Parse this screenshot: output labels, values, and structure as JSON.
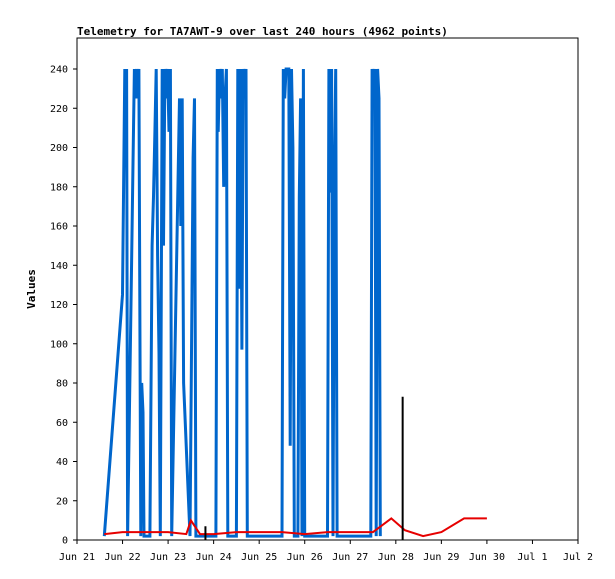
{
  "chart_data": {
    "type": "line",
    "title": "Telemetry for TA7AWT-9 over last 240 hours (4962 points)",
    "ylabel": "Values",
    "xlabel": "",
    "ylim": [
      0,
      250
    ],
    "yticks": [
      0,
      20,
      40,
      60,
      80,
      100,
      120,
      140,
      160,
      180,
      200,
      220,
      240
    ],
    "xlim": [
      0,
      11
    ],
    "xticks": [
      "Jun 21",
      "Jun 22",
      "Jun 23",
      "Jun 24",
      "Jun 25",
      "Jun 26",
      "Jun 27",
      "Jun 28",
      "Jun 29",
      "Jun 30",
      "Jul 1",
      "Jul 2"
    ],
    "grid": false,
    "legend": "none",
    "series": [
      {
        "color": "#0066cc",
        "style": "line",
        "points": [
          [
            0.6,
            2
          ],
          [
            1.0,
            125
          ],
          [
            1.05,
            240
          ],
          [
            1.07,
            208
          ],
          [
            1.09,
            240
          ],
          [
            1.11,
            2
          ],
          [
            1.2,
            145
          ],
          [
            1.23,
            192
          ],
          [
            1.26,
            240
          ],
          [
            1.28,
            225
          ],
          [
            1.31,
            240
          ],
          [
            1.33,
            225
          ],
          [
            1.36,
            240
          ],
          [
            1.38,
            110
          ],
          [
            1.4,
            2
          ],
          [
            1.42,
            80
          ],
          [
            1.45,
            65
          ],
          [
            1.47,
            2
          ],
          [
            1.6,
            2
          ],
          [
            1.65,
            150
          ],
          [
            1.68,
            175
          ],
          [
            1.71,
            208
          ],
          [
            1.74,
            240
          ],
          [
            1.77,
            145
          ],
          [
            1.8,
            95
          ],
          [
            1.83,
            2
          ],
          [
            1.87,
            240
          ],
          [
            1.9,
            150
          ],
          [
            1.93,
            240
          ],
          [
            1.96,
            225
          ],
          [
            1.99,
            240
          ],
          [
            2.02,
            208
          ],
          [
            2.05,
            240
          ],
          [
            2.08,
            2
          ],
          [
            2.25,
            225
          ],
          [
            2.28,
            160
          ],
          [
            2.31,
            225
          ],
          [
            2.34,
            80
          ],
          [
            2.48,
            2
          ],
          [
            2.55,
            195
          ],
          [
            2.58,
            225
          ],
          [
            2.61,
            2
          ],
          [
            3.05,
            2
          ],
          [
            3.08,
            240
          ],
          [
            3.1,
            208
          ],
          [
            3.13,
            240
          ],
          [
            3.16,
            225
          ],
          [
            3.19,
            240
          ],
          [
            3.22,
            180
          ],
          [
            3.25,
            225
          ],
          [
            3.28,
            240
          ],
          [
            3.31,
            2
          ],
          [
            3.5,
            2
          ],
          [
            3.53,
            240
          ],
          [
            3.56,
            128
          ],
          [
            3.59,
            240
          ],
          [
            3.62,
            97
          ],
          [
            3.65,
            240
          ],
          [
            3.68,
            225
          ],
          [
            3.71,
            240
          ],
          [
            3.74,
            2
          ],
          [
            4.5,
            2
          ],
          [
            4.53,
            240
          ],
          [
            4.56,
            225
          ],
          [
            4.59,
            240
          ],
          [
            4.62,
            240
          ],
          [
            4.65,
            240
          ],
          [
            4.68,
            48
          ],
          [
            4.71,
            240
          ],
          [
            4.74,
            200
          ],
          [
            4.77,
            2
          ],
          [
            4.85,
            2
          ],
          [
            4.88,
            175
          ],
          [
            4.91,
            225
          ],
          [
            4.94,
            2
          ],
          [
            4.97,
            240
          ],
          [
            5.0,
            2
          ],
          [
            5.5,
            2
          ],
          [
            5.53,
            240
          ],
          [
            5.56,
            177
          ],
          [
            5.59,
            240
          ],
          [
            5.62,
            2
          ],
          [
            5.65,
            177
          ],
          [
            5.68,
            240
          ],
          [
            5.71,
            2
          ],
          [
            6.45,
            2
          ],
          [
            6.48,
            240
          ],
          [
            6.51,
            225
          ],
          [
            6.54,
            240
          ],
          [
            6.57,
            2
          ],
          [
            6.6,
            240
          ],
          [
            6.63,
            225
          ],
          [
            6.66,
            2
          ]
        ]
      },
      {
        "color": "#e60000",
        "style": "line",
        "points": [
          [
            0.6,
            3
          ],
          [
            1.0,
            4
          ],
          [
            1.5,
            4
          ],
          [
            2.0,
            4
          ],
          [
            2.4,
            3
          ],
          [
            2.5,
            10
          ],
          [
            2.7,
            3
          ],
          [
            3.0,
            3
          ],
          [
            3.5,
            4
          ],
          [
            4.0,
            4
          ],
          [
            4.5,
            4
          ],
          [
            5.0,
            3
          ],
          [
            5.5,
            4
          ],
          [
            6.0,
            4
          ],
          [
            6.5,
            4
          ],
          [
            6.9,
            11
          ],
          [
            7.2,
            5
          ],
          [
            7.6,
            2
          ],
          [
            8.0,
            4
          ],
          [
            8.5,
            11
          ],
          [
            9.0,
            11
          ]
        ]
      },
      {
        "color": "#000000",
        "style": "spike",
        "points": [
          [
            2.82,
            7
          ],
          [
            7.15,
            73
          ]
        ]
      }
    ]
  }
}
